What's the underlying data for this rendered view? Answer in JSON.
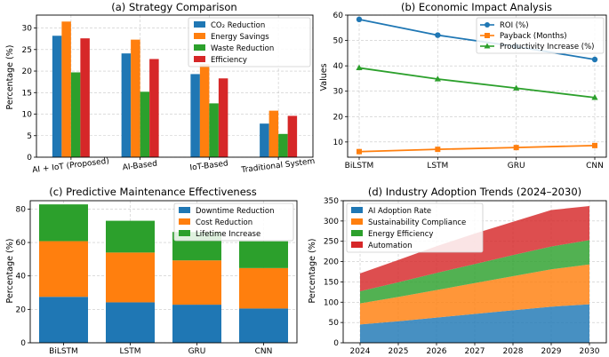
{
  "colors": {
    "blue": "#1f77b4",
    "orange": "#ff7f0e",
    "green": "#2ca02c",
    "red": "#d62728"
  },
  "chart_data": [
    {
      "type": "bar",
      "title": "(a) Strategy Comparison",
      "ylabel": "Percentage (%)",
      "xlabel": "",
      "ylim": [
        0,
        33
      ],
      "yticks": [
        0,
        5,
        10,
        15,
        20,
        25,
        30
      ],
      "categories": [
        "AI + IoT (Proposed)",
        "AI-Based",
        "IoT-Based",
        "Traditional System"
      ],
      "series": [
        {
          "name": "CO₂ Reduction",
          "color": "#1f77b4",
          "values": [
            28.2,
            24.1,
            19.3,
            7.8
          ]
        },
        {
          "name": "Energy Savings",
          "color": "#ff7f0e",
          "values": [
            31.5,
            27.3,
            21.6,
            10.8
          ]
        },
        {
          "name": "Waste Reduction",
          "color": "#2ca02c",
          "values": [
            19.7,
            15.2,
            12.5,
            5.4
          ]
        },
        {
          "name": "Efficiency",
          "color": "#d62728",
          "values": [
            27.6,
            22.8,
            18.3,
            9.6
          ]
        }
      ],
      "legend": "top-right",
      "grid": true
    },
    {
      "type": "line",
      "title": "(b) Economic Impact Analysis",
      "ylabel": "Values",
      "xlabel": "",
      "ylim": [
        4,
        60
      ],
      "yticks": [
        10,
        20,
        30,
        40,
        50,
        60
      ],
      "categories": [
        "BiLSTM",
        "LSTM",
        "GRU",
        "CNN"
      ],
      "series": [
        {
          "name": "ROI (%)",
          "color": "#1f77b4",
          "marker": "circle",
          "values": [
            58.3,
            52.1,
            47.6,
            42.5
          ]
        },
        {
          "name": "Payback (Months)",
          "color": "#ff7f0e",
          "marker": "square",
          "values": [
            6.2,
            7.1,
            7.8,
            8.6
          ]
        },
        {
          "name": "Productivity Increase (%)",
          "color": "#2ca02c",
          "marker": "triangle",
          "values": [
            39.2,
            34.8,
            31.2,
            27.5
          ]
        }
      ],
      "legend": "top-right",
      "grid": true
    },
    {
      "type": "bar",
      "stacked": true,
      "title": "(c) Predictive Maintenance Effectiveness",
      "ylabel": "Percentage (%)",
      "xlabel": "",
      "ylim": [
        0,
        85
      ],
      "yticks": [
        0,
        20,
        40,
        60,
        80
      ],
      "categories": [
        "BiLSTM",
        "LSTM",
        "GRU",
        "CNN"
      ],
      "series": [
        {
          "name": "Downtime Reduction",
          "color": "#1f77b4",
          "values": [
            27.5,
            24.2,
            22.8,
            20.5
          ]
        },
        {
          "name": "Cost Reduction",
          "color": "#ff7f0e",
          "values": [
            33.3,
            29.8,
            26.5,
            24.2
          ]
        },
        {
          "name": "Lifetime Increase",
          "color": "#2ca02c",
          "values": [
            22.0,
            19.0,
            17.0,
            16.0
          ]
        }
      ],
      "legend": "top-right",
      "grid": true
    },
    {
      "type": "area",
      "stacked": true,
      "title": "(d) Industry Adoption Trends (2024–2030)",
      "ylabel": "Percentage (%)",
      "xlabel": "",
      "xlim": [
        2024,
        2030
      ],
      "ylim": [
        0,
        350
      ],
      "yticks": [
        0,
        50,
        100,
        150,
        200,
        250,
        300,
        350
      ],
      "xticks": [
        "2024",
        "2025",
        "2026",
        "2027",
        "2028",
        "2029",
        "2030"
      ],
      "x": [
        2024,
        2025,
        2026,
        2027,
        2028,
        2029,
        2030
      ],
      "series": [
        {
          "name": "AI Adoption Rate",
          "color": "#1f77b4",
          "values": [
            45,
            53,
            62,
            71,
            80,
            89,
            95
          ]
        },
        {
          "name": "Sustainability Compliance",
          "color": "#ff7f0e",
          "values": [
            52,
            60,
            68,
            76,
            84,
            92,
            98
          ]
        },
        {
          "name": "Energy Efficiency",
          "color": "#2ca02c",
          "values": [
            30,
            36,
            42,
            47,
            52,
            56,
            60
          ]
        },
        {
          "name": "Automation",
          "color": "#d62728",
          "values": [
            44,
            55,
            66,
            75,
            82,
            90,
            84
          ]
        }
      ],
      "legend": "top-left",
      "grid": true
    }
  ]
}
